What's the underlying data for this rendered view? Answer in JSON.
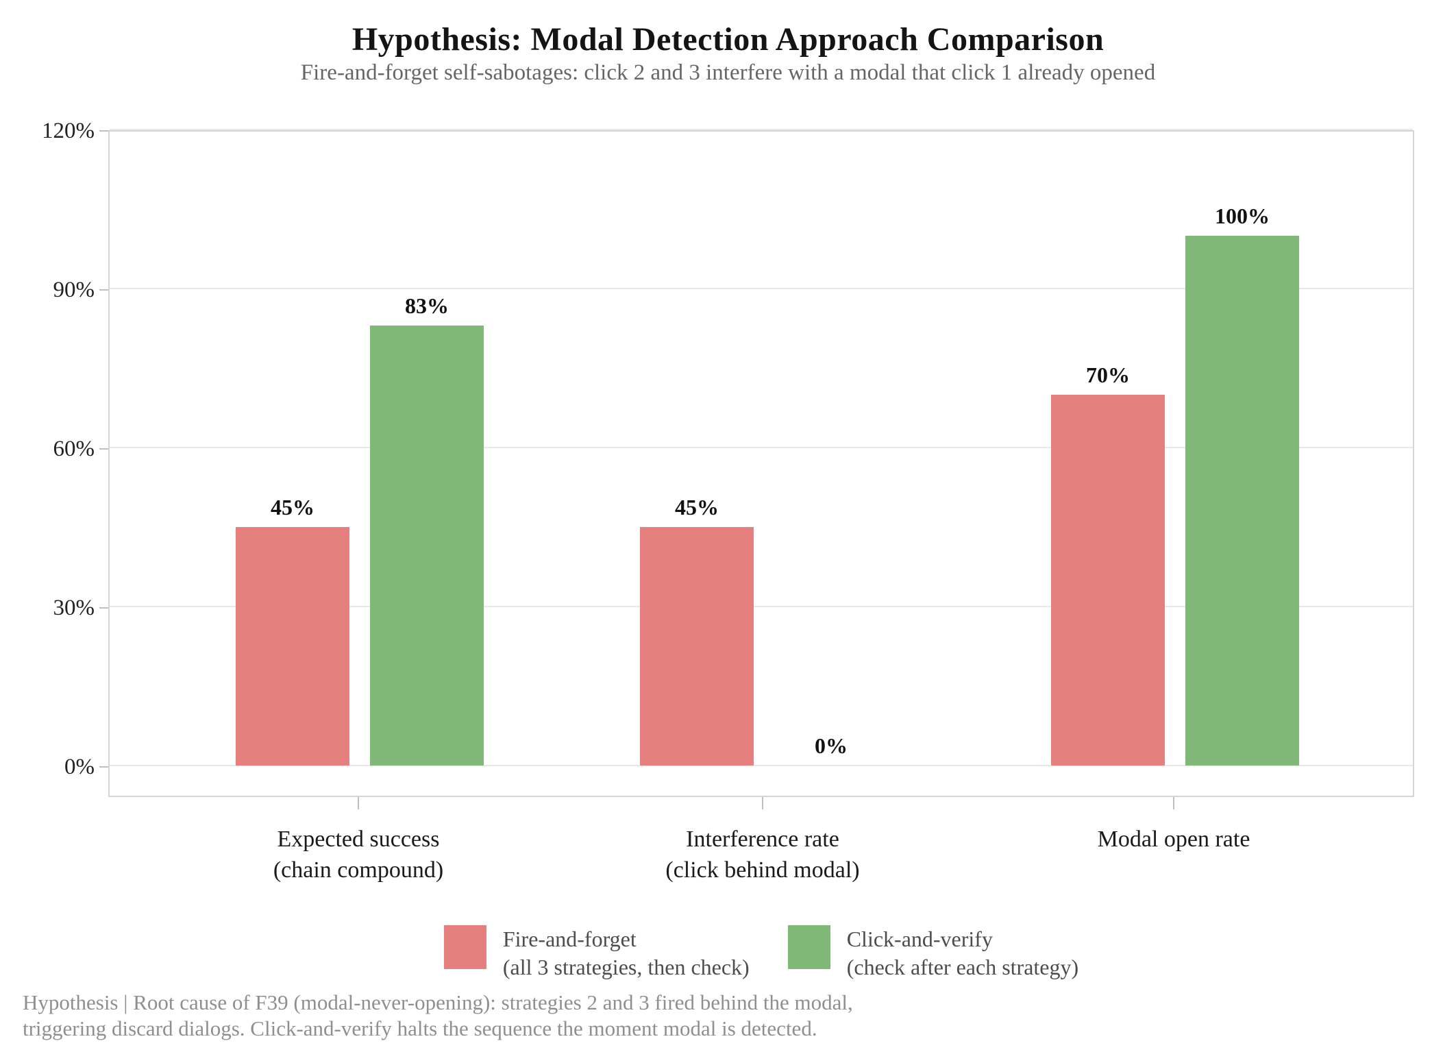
{
  "figure": {
    "title": "Hypothesis: Modal Detection Approach Comparison",
    "subtitle": "Fire-and-forget self-sabotages: click 2 and 3 interfere with a modal that click 1 already opened"
  },
  "chart_data": {
    "type": "bar",
    "title": "Hypothesis: Modal Detection Approach Comparison",
    "subtitle": "Fire-and-forget self-sabotages: click 2 and 3 interfere with a modal that click 1 already opened",
    "categories": [
      "Expected success\n(chain compound)",
      "Interference rate\n(click behind modal)",
      "Modal open rate"
    ],
    "series": [
      {
        "name": "Fire-and-forget",
        "legend_detail": "(all 3 strategies, then check)",
        "color": "#e6807f",
        "values": [
          45,
          45,
          70
        ]
      },
      {
        "name": "Click-and-verify",
        "legend_detail": "(check after each strategy)",
        "color": "#80b878",
        "values": [
          83,
          0,
          100
        ]
      }
    ],
    "bar_value_labels": [
      [
        "45%",
        "45%",
        "70%"
      ],
      [
        "83%",
        "0%",
        "100%"
      ]
    ],
    "xlabel": "",
    "ylabel": "",
    "yticks_percent": [
      0,
      30,
      60,
      90,
      120
    ],
    "ytick_labels": [
      "0%",
      "30%",
      "60%",
      "90%",
      "120%"
    ],
    "ylim": [
      -6,
      120
    ],
    "grid": "horizontal-light",
    "legend_position": "bottom-center"
  },
  "colors": {
    "fire_and_forget": "#e6807f",
    "click_and_verify": "#80b878",
    "gridline": "#e8e8e8",
    "axis_frame": "#d5d5d5",
    "tick_mark": "#bfbfbf",
    "subtitle_text": "#666666",
    "footer_text": "#8f8f8f"
  },
  "footer": {
    "line1": "Hypothesis | Root cause of F39 (modal-never-opening): strategies 2 and 3 fired behind the modal,",
    "line2": "triggering discard dialogs. Click-and-verify halts the sequence the moment modal is detected."
  }
}
